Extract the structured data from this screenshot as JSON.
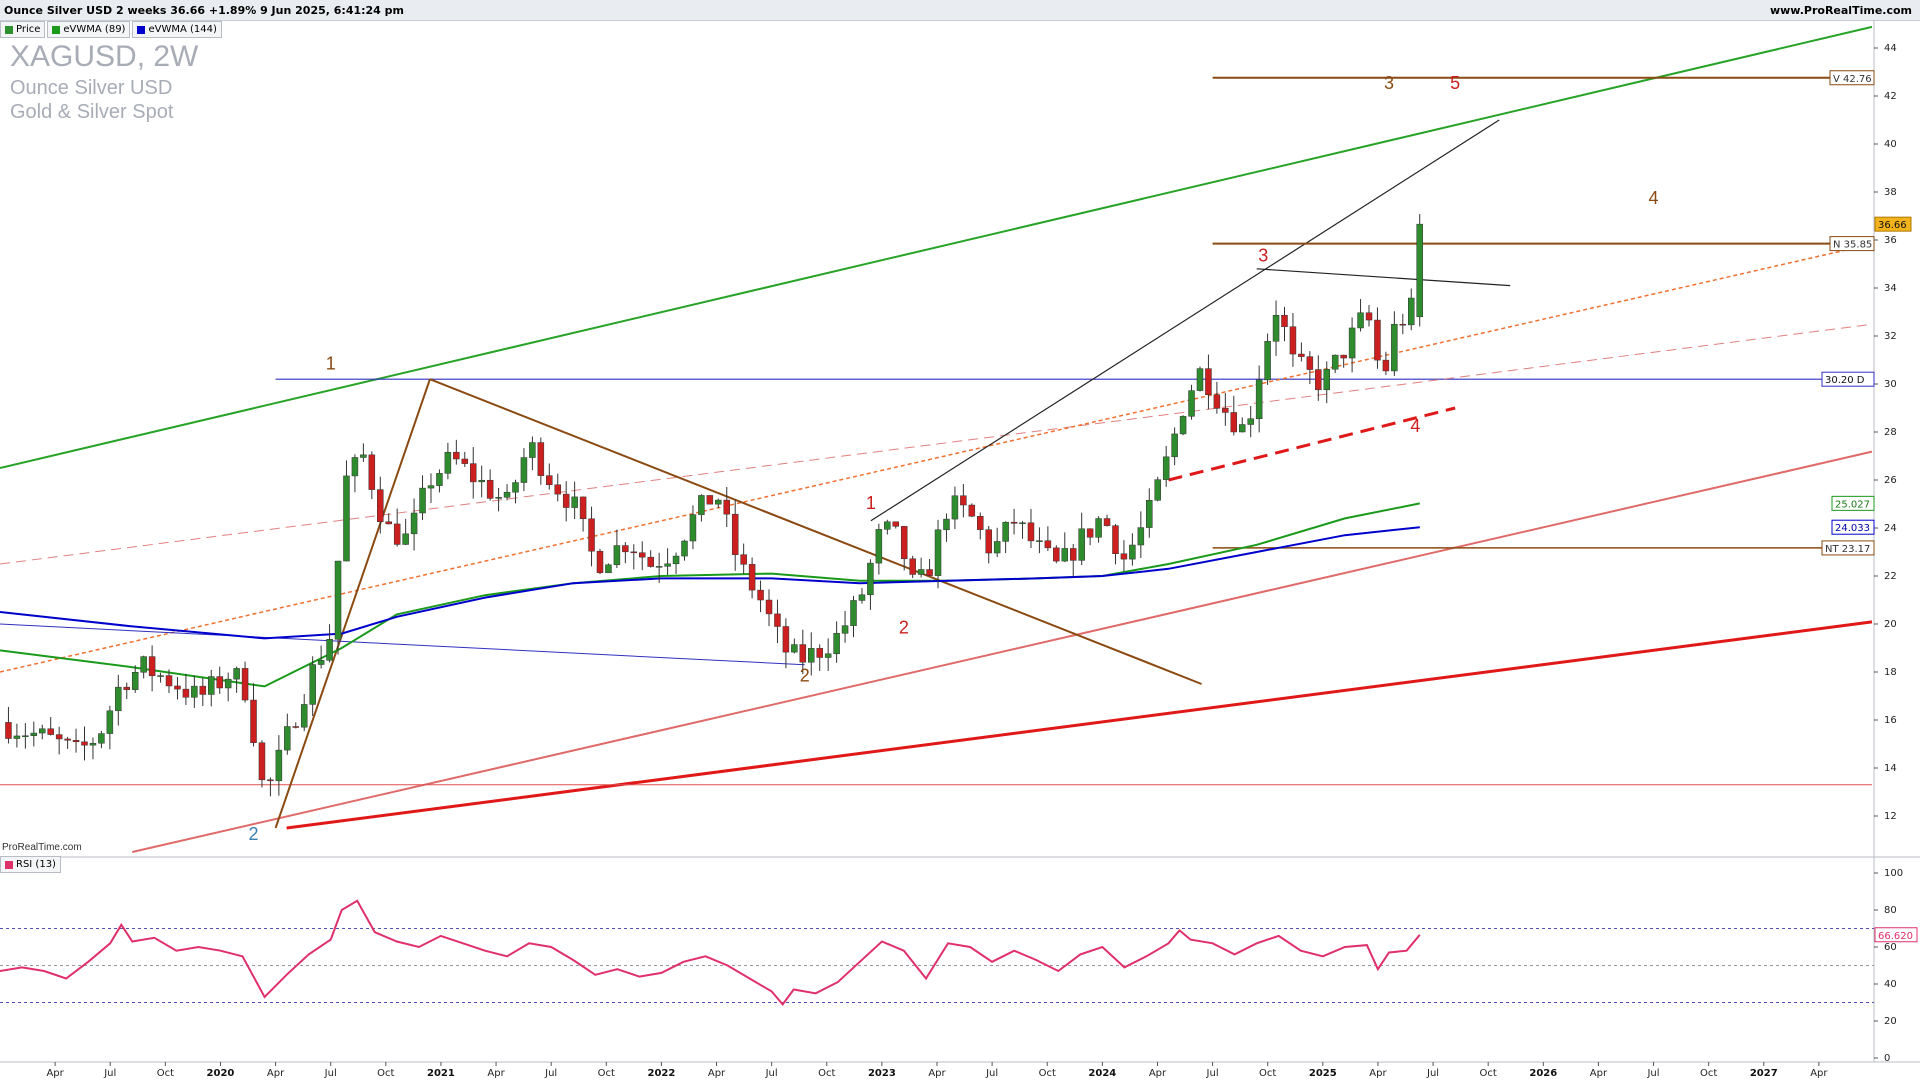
{
  "header": {
    "title": "Ounce Silver USD 2 weeks 36.66 +1.89% 9 Jun 2025, 6:41:24 pm",
    "site": "www.ProRealTime.com"
  },
  "legend": [
    {
      "label": "Price",
      "color": "#2d8f2d"
    },
    {
      "label": "eVWMA (89)",
      "color": "#1a9a1a"
    },
    {
      "label": "eVWMA (144)",
      "color": "#0000cc"
    }
  ],
  "instrument": {
    "symbol": "XAGUSD, 2W",
    "name": "Ounce Silver USD",
    "group": "Gold & Silver Spot"
  },
  "watermark": "ProRealTime.com",
  "rsi_legend": {
    "label": "RSI (13)",
    "color": "#e0306a"
  },
  "colors": {
    "up": "#2e8b2e",
    "down": "#cc1f1f",
    "evwma89": "#1a9a1a",
    "evwma144": "#0000cc",
    "rsi": "#e0306a"
  },
  "chart_data": [
    {
      "type": "candlestick",
      "title": "XAGUSD, 2W",
      "interval": "2 weeks",
      "ylim": [
        10.5,
        45
      ],
      "y_ticks": [
        12,
        14,
        16,
        18,
        20,
        22,
        24,
        26,
        28,
        30,
        32,
        34,
        36,
        38,
        40,
        42,
        44
      ],
      "x_ticks": [
        {
          "t": 2019.25,
          "label": "Apr",
          "bold": false
        },
        {
          "t": 2019.5,
          "label": "Jul",
          "bold": false
        },
        {
          "t": 2019.75,
          "label": "Oct",
          "bold": false
        },
        {
          "t": 2020.0,
          "label": "2020",
          "bold": true
        },
        {
          "t": 2020.25,
          "label": "Apr",
          "bold": false
        },
        {
          "t": 2020.5,
          "label": "Jul",
          "bold": false
        },
        {
          "t": 2020.75,
          "label": "Oct",
          "bold": false
        },
        {
          "t": 2021.0,
          "label": "2021",
          "bold": true
        },
        {
          "t": 2021.25,
          "label": "Apr",
          "bold": false
        },
        {
          "t": 2021.5,
          "label": "Jul",
          "bold": false
        },
        {
          "t": 2021.75,
          "label": "Oct",
          "bold": false
        },
        {
          "t": 2022.0,
          "label": "2022",
          "bold": true
        },
        {
          "t": 2022.25,
          "label": "Apr",
          "bold": false
        },
        {
          "t": 2022.5,
          "label": "Jul",
          "bold": false
        },
        {
          "t": 2022.75,
          "label": "Oct",
          "bold": false
        },
        {
          "t": 2023.0,
          "label": "2023",
          "bold": true
        },
        {
          "t": 2023.25,
          "label": "Apr",
          "bold": false
        },
        {
          "t": 2023.5,
          "label": "Jul",
          "bold": false
        },
        {
          "t": 2023.75,
          "label": "Oct",
          "bold": false
        },
        {
          "t": 2024.0,
          "label": "2024",
          "bold": true
        },
        {
          "t": 2024.25,
          "label": "Apr",
          "bold": false
        },
        {
          "t": 2024.5,
          "label": "Jul",
          "bold": false
        },
        {
          "t": 2024.75,
          "label": "Oct",
          "bold": false
        },
        {
          "t": 2025.0,
          "label": "2025",
          "bold": true
        },
        {
          "t": 2025.25,
          "label": "Apr",
          "bold": false
        },
        {
          "t": 2025.5,
          "label": "Jul",
          "bold": false
        },
        {
          "t": 2025.75,
          "label": "Oct",
          "bold": false
        },
        {
          "t": 2026.0,
          "label": "2026",
          "bold": true
        },
        {
          "t": 2026.25,
          "label": "Apr",
          "bold": false
        },
        {
          "t": 2026.5,
          "label": "Jul",
          "bold": false
        },
        {
          "t": 2026.75,
          "label": "Oct",
          "bold": false
        },
        {
          "t": 2027.0,
          "label": "2027",
          "bold": true
        },
        {
          "t": 2027.25,
          "label": "Apr",
          "bold": false
        }
      ],
      "price_path": [
        [
          2019.0,
          15.9
        ],
        [
          2019.25,
          15.1
        ],
        [
          2019.35,
          14.6
        ],
        [
          2019.45,
          15.4
        ],
        [
          2019.55,
          17.6
        ],
        [
          2019.65,
          18.2
        ],
        [
          2019.8,
          17.5
        ],
        [
          2019.9,
          16.9
        ],
        [
          2020.05,
          18.0
        ],
        [
          2020.12,
          17.2
        ],
        [
          2020.2,
          12.7
        ],
        [
          2020.3,
          15.2
        ],
        [
          2020.4,
          17.7
        ],
        [
          2020.5,
          19.6
        ],
        [
          2020.57,
          26.0
        ],
        [
          2020.65,
          27.0
        ],
        [
          2020.75,
          24.0
        ],
        [
          2020.85,
          23.5
        ],
        [
          2020.95,
          26.0
        ],
        [
          2021.05,
          26.9
        ],
        [
          2021.15,
          26.1
        ],
        [
          2021.3,
          25.0
        ],
        [
          2021.4,
          27.5
        ],
        [
          2021.5,
          26.0
        ],
        [
          2021.6,
          25.0
        ],
        [
          2021.7,
          22.5
        ],
        [
          2021.85,
          23.5
        ],
        [
          2021.95,
          22.5
        ],
        [
          2022.05,
          23.0
        ],
        [
          2022.15,
          24.5
        ],
        [
          2022.25,
          25.5
        ],
        [
          2022.35,
          22.5
        ],
        [
          2022.45,
          21.0
        ],
        [
          2022.55,
          19.0
        ],
        [
          2022.62,
          18.5
        ],
        [
          2022.7,
          18.8
        ],
        [
          2022.8,
          19.5
        ],
        [
          2022.9,
          21.0
        ],
        [
          2023.0,
          24.0
        ],
        [
          2023.08,
          23.5
        ],
        [
          2023.15,
          21.3
        ],
        [
          2023.22,
          22.5
        ],
        [
          2023.3,
          25.0
        ],
        [
          2023.4,
          24.5
        ],
        [
          2023.5,
          23.0
        ],
        [
          2023.6,
          24.3
        ],
        [
          2023.7,
          23.2
        ],
        [
          2023.8,
          22.3
        ],
        [
          2023.9,
          23.5
        ],
        [
          2024.0,
          24.5
        ],
        [
          2024.1,
          22.7
        ],
        [
          2024.2,
          24.3
        ],
        [
          2024.3,
          27.0
        ],
        [
          2024.38,
          29.5
        ],
        [
          2024.45,
          30.6
        ],
        [
          2024.55,
          29.0
        ],
        [
          2024.65,
          28.0
        ],
        [
          2024.75,
          32.0
        ],
        [
          2024.8,
          33.5
        ],
        [
          2024.85,
          31.0
        ],
        [
          2024.92,
          30.5
        ],
        [
          2025.0,
          30.0
        ],
        [
          2025.1,
          31.5
        ],
        [
          2025.2,
          33.0
        ],
        [
          2025.27,
          30.0
        ],
        [
          2025.33,
          32.5
        ],
        [
          2025.4,
          33.0
        ],
        [
          2025.44,
          36.66
        ]
      ],
      "last_price": "36.66",
      "price_labels": [
        "V 42.76",
        "N 35.85",
        "30.20 D",
        "25.027",
        "24.033",
        "NT 23.17"
      ],
      "annotations": [
        {
          "text": "1",
          "t": 2020.5,
          "y": 30.6,
          "color": "#8a4a12"
        },
        {
          "text": "2",
          "t": 2022.65,
          "y": 17.6,
          "color": "#8a4a12"
        },
        {
          "text": "3",
          "t": 2025.3,
          "y": 42.3,
          "color": "#8a4a12"
        },
        {
          "text": "4",
          "t": 2026.5,
          "y": 37.5,
          "color": "#8a4a12"
        },
        {
          "text": "5",
          "t": 2025.6,
          "y": 42.3,
          "color": "#cc1f1f"
        },
        {
          "text": "1",
          "t": 2022.95,
          "y": 24.8,
          "color": "#cc1f1f"
        },
        {
          "text": "2",
          "t": 2023.1,
          "y": 19.6,
          "color": "#cc1f1f"
        },
        {
          "text": "3",
          "t": 2024.73,
          "y": 35.1,
          "color": "#cc1f1f"
        },
        {
          "text": "4",
          "t": 2025.42,
          "y": 28.0,
          "color": "#cc1f1f"
        },
        {
          "text": "2",
          "t": 2020.15,
          "y": 11.0,
          "color": "#3a7fb0"
        }
      ]
    },
    {
      "type": "line",
      "title": "RSI (13)",
      "ylim": [
        0,
        100
      ],
      "y_ticks": [
        0,
        20,
        40,
        60,
        80,
        100
      ],
      "reference_lines": [
        70,
        50,
        30
      ],
      "last_value": "66.620",
      "series": [
        {
          "name": "RSI (13)",
          "points": [
            [
              2019.0,
              47
            ],
            [
              2019.1,
              49
            ],
            [
              2019.2,
              47
            ],
            [
              2019.3,
              43
            ],
            [
              2019.4,
              52
            ],
            [
              2019.5,
              62
            ],
            [
              2019.55,
              72
            ],
            [
              2019.6,
              63
            ],
            [
              2019.7,
              65
            ],
            [
              2019.8,
              58
            ],
            [
              2019.9,
              60
            ],
            [
              2020.0,
              58
            ],
            [
              2020.1,
              55
            ],
            [
              2020.2,
              33
            ],
            [
              2020.3,
              45
            ],
            [
              2020.4,
              56
            ],
            [
              2020.5,
              64
            ],
            [
              2020.55,
              80
            ],
            [
              2020.62,
              85
            ],
            [
              2020.7,
              68
            ],
            [
              2020.8,
              63
            ],
            [
              2020.9,
              60
            ],
            [
              2021.0,
              66
            ],
            [
              2021.1,
              62
            ],
            [
              2021.2,
              58
            ],
            [
              2021.3,
              55
            ],
            [
              2021.4,
              62
            ],
            [
              2021.5,
              60
            ],
            [
              2021.6,
              53
            ],
            [
              2021.7,
              45
            ],
            [
              2021.8,
              48
            ],
            [
              2021.9,
              44
            ],
            [
              2022.0,
              46
            ],
            [
              2022.1,
              52
            ],
            [
              2022.2,
              55
            ],
            [
              2022.3,
              50
            ],
            [
              2022.4,
              43
            ],
            [
              2022.5,
              36
            ],
            [
              2022.55,
              29
            ],
            [
              2022.6,
              37
            ],
            [
              2022.7,
              35
            ],
            [
              2022.8,
              41
            ],
            [
              2022.9,
              52
            ],
            [
              2023.0,
              63
            ],
            [
              2023.1,
              58
            ],
            [
              2023.2,
              43
            ],
            [
              2023.3,
              62
            ],
            [
              2023.4,
              60
            ],
            [
              2023.5,
              52
            ],
            [
              2023.6,
              58
            ],
            [
              2023.7,
              53
            ],
            [
              2023.8,
              47
            ],
            [
              2023.9,
              56
            ],
            [
              2024.0,
              60
            ],
            [
              2024.1,
              49
            ],
            [
              2024.2,
              55
            ],
            [
              2024.3,
              62
            ],
            [
              2024.35,
              69
            ],
            [
              2024.4,
              64
            ],
            [
              2024.5,
              62
            ],
            [
              2024.6,
              56
            ],
            [
              2024.7,
              62
            ],
            [
              2024.8,
              66
            ],
            [
              2024.9,
              58
            ],
            [
              2025.0,
              55
            ],
            [
              2025.1,
              60
            ],
            [
              2025.2,
              61
            ],
            [
              2025.25,
              48
            ],
            [
              2025.3,
              57
            ],
            [
              2025.38,
              58
            ],
            [
              2025.44,
              66.62
            ]
          ]
        }
      ]
    }
  ]
}
